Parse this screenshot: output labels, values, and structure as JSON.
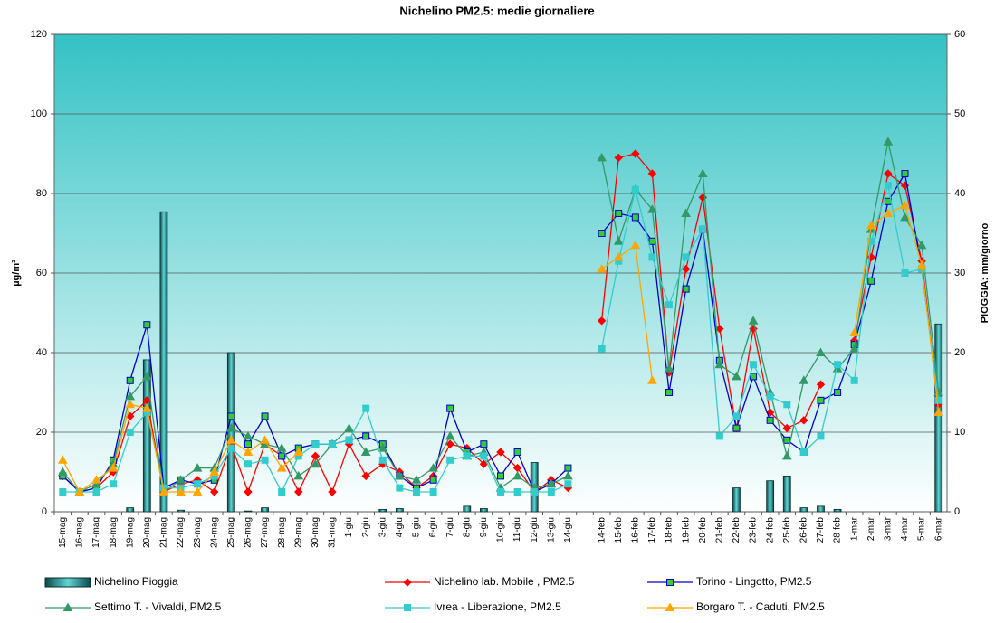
{
  "chart_data": {
    "type": "line",
    "title": "Nichelino  PM2.5: medie giornaliere",
    "y_label": "µg/m³",
    "y2_label": "PIOGGIA: mm/giorno",
    "categories": [
      "15-mag",
      "16-mag",
      "17-mag",
      "18-mag",
      "19-mag",
      "20-mag",
      "21-mag",
      "22-mag",
      "23-mag",
      "24-mag",
      "25-mag",
      "26-mag",
      "27-mag",
      "28-mag",
      "29-mag",
      "30-mag",
      "31-mag",
      "1-giu",
      "2-giu",
      "3-giu",
      "4-giu",
      "5-giu",
      "6-giu",
      "7-giu",
      "8-giu",
      "9-giu",
      "10-giu",
      "11-giu",
      "12-giu",
      "13-giu",
      "14-giu",
      null,
      "14-feb",
      "15-feb",
      "16-feb",
      "17-feb",
      "18-feb",
      "19-feb",
      "20-feb",
      "21-feb",
      "22-feb",
      "23-feb",
      "24-feb",
      "25-feb",
      "26-feb",
      "27-feb",
      "28-feb",
      "1-mar",
      "2-mar",
      "3-mar",
      "4-mar",
      "5-mar",
      "6-mar"
    ],
    "ylim": [
      0,
      120
    ],
    "yticks": [
      0,
      20,
      40,
      60,
      80,
      100,
      120
    ],
    "y2lim": [
      0,
      60
    ],
    "y2ticks": [
      0,
      10,
      20,
      30,
      40,
      50,
      60
    ],
    "grid": true,
    "series": [
      {
        "name": "Nichelino Pioggia",
        "type": "bar",
        "axis": "y2",
        "color": "#1f7070",
        "values": [
          null,
          null,
          null,
          null,
          0.5,
          19.1,
          37.7,
          0.2,
          null,
          null,
          20,
          0.1,
          0.5,
          null,
          null,
          null,
          null,
          null,
          null,
          0.3,
          0.4,
          null,
          null,
          null,
          0.7,
          0.4,
          null,
          null,
          6.2,
          null,
          null,
          null,
          null,
          null,
          null,
          null,
          null,
          null,
          null,
          null,
          3,
          null,
          3.9,
          4.5,
          0.5,
          0.7,
          0.3,
          null,
          null,
          null,
          null,
          null,
          23.6
        ]
      },
      {
        "name": "Nichelino lab. Mobile ,  PM2.5",
        "type": "line",
        "color": "#ff0000",
        "marker": "diamond",
        "marker_fill": "#ff0000",
        "values": [
          9,
          5,
          6,
          10,
          24,
          28,
          5,
          7,
          8,
          5,
          17,
          5,
          17,
          14,
          5,
          14,
          5,
          17,
          9,
          12,
          10,
          6,
          9,
          17,
          16,
          12,
          15,
          11,
          5,
          8,
          6,
          null,
          48,
          89,
          90,
          85,
          35,
          61,
          79,
          46,
          21,
          46,
          25,
          21,
          23,
          32,
          null,
          43,
          64,
          85,
          82,
          63,
          27
        ]
      },
      {
        "name": "Torino - Lingotto,  PM2.5",
        "type": "line",
        "color": "#0000cc",
        "marker": "square",
        "marker_fill": "#33cc33",
        "values": [
          9,
          5,
          6,
          13,
          33,
          47,
          6,
          8,
          7,
          8,
          24,
          17,
          24,
          14,
          16,
          17,
          17,
          18,
          19,
          17,
          9,
          6,
          8,
          26,
          15,
          17,
          9,
          15,
          5,
          7,
          11,
          null,
          70,
          75,
          74,
          68,
          30,
          56,
          71,
          38,
          21,
          34,
          23,
          18,
          15,
          28,
          30,
          42,
          58,
          78,
          85,
          61,
          28
        ]
      },
      {
        "name": "Settimo T. - Vivaldi, PM2.5",
        "type": "line",
        "color": "#339966",
        "marker": "triangle",
        "marker_fill": "#339966",
        "values": [
          10,
          5,
          7,
          12,
          29,
          34,
          5,
          8,
          11,
          11,
          21,
          19,
          17,
          16,
          9,
          12,
          17,
          21,
          15,
          16,
          9,
          8,
          11,
          19,
          14,
          15,
          6,
          9,
          6,
          7,
          9,
          null,
          89,
          68,
          81,
          76,
          36,
          75,
          85,
          37,
          34,
          48,
          30,
          14,
          33,
          40,
          36,
          41,
          71,
          93,
          74,
          67,
          30
        ]
      },
      {
        "name": "Ivrea - Liberazione,  PM2.5",
        "type": "line",
        "color": "#33cccc",
        "marker": "square",
        "marker_fill": "#33cccc",
        "values": [
          5,
          5,
          5,
          7,
          20,
          25,
          6,
          6,
          7,
          9,
          16,
          12,
          13,
          5,
          14,
          17,
          17,
          18,
          26,
          13,
          6,
          5,
          5,
          13,
          14,
          14,
          5,
          5,
          5,
          5,
          7,
          null,
          41,
          63,
          81,
          64,
          52,
          64,
          71,
          19,
          24,
          37,
          29,
          27,
          15,
          19,
          37,
          33,
          68,
          82,
          60,
          61,
          28
        ]
      },
      {
        "name": "Borgaro T. - Caduti, PM2.5",
        "type": "line",
        "color": "#ffa500",
        "marker": "triangle",
        "marker_fill": "#ffa500",
        "values": [
          13,
          5,
          8,
          11,
          27,
          26,
          5,
          5,
          5,
          10,
          18,
          15,
          18,
          11,
          15,
          null,
          null,
          null,
          null,
          null,
          null,
          null,
          null,
          null,
          null,
          null,
          null,
          null,
          null,
          null,
          null,
          null,
          61,
          64,
          67,
          33,
          null,
          null,
          null,
          null,
          null,
          null,
          null,
          null,
          null,
          null,
          null,
          45,
          72,
          75,
          77,
          62,
          25
        ]
      }
    ]
  }
}
